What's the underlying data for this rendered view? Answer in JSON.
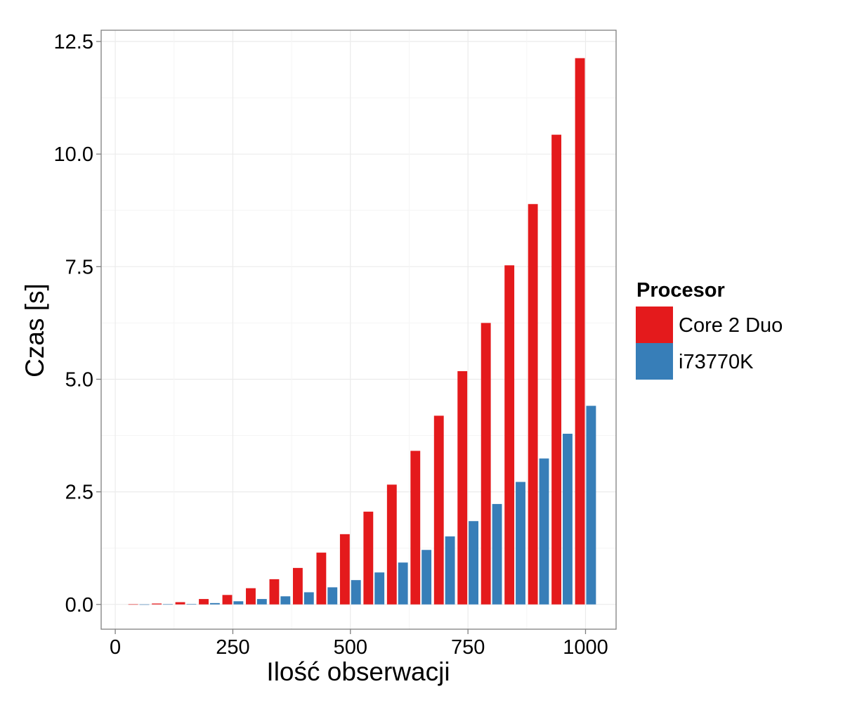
{
  "chart_data": {
    "type": "bar",
    "x": [
      50,
      100,
      150,
      200,
      250,
      300,
      350,
      400,
      450,
      500,
      550,
      600,
      650,
      700,
      750,
      800,
      850,
      900,
      950,
      1000
    ],
    "series": [
      {
        "name": "Core 2 Duo",
        "color": "#E41A1C",
        "values": [
          0.003,
          0.02,
          0.05,
          0.12,
          0.21,
          0.36,
          0.56,
          0.81,
          1.15,
          1.56,
          2.06,
          2.66,
          3.41,
          4.19,
          5.18,
          6.25,
          7.53,
          8.89,
          10.43,
          12.13
        ]
      },
      {
        "name": "i73770K",
        "color": "#377EB8",
        "values": [
          0.001,
          0.004,
          0.01,
          0.03,
          0.07,
          0.12,
          0.18,
          0.27,
          0.38,
          0.54,
          0.71,
          0.93,
          1.21,
          1.51,
          1.85,
          2.23,
          2.72,
          3.24,
          3.79,
          4.41
        ]
      }
    ],
    "xlabel": "Ilość obserwacji",
    "ylabel": "Czas [s]",
    "xlim": [
      -30,
      1065
    ],
    "ylim": [
      -0.55,
      12.75
    ],
    "xticks": [
      0,
      250,
      500,
      750,
      1000
    ],
    "xtick_labels": [
      "0",
      "250",
      "500",
      "750",
      "1000"
    ],
    "yticks": [
      0,
      2.5,
      5,
      7.5,
      10,
      12.5
    ],
    "ytick_labels": [
      "0.0",
      "2.5",
      "5.0",
      "7.5",
      "10.0",
      "12.5"
    ],
    "grid": true,
    "legend": {
      "title": "Procesor",
      "position": "right",
      "items": [
        "Core 2 Duo",
        "i73770K"
      ]
    },
    "bar_width": 23.7
  }
}
